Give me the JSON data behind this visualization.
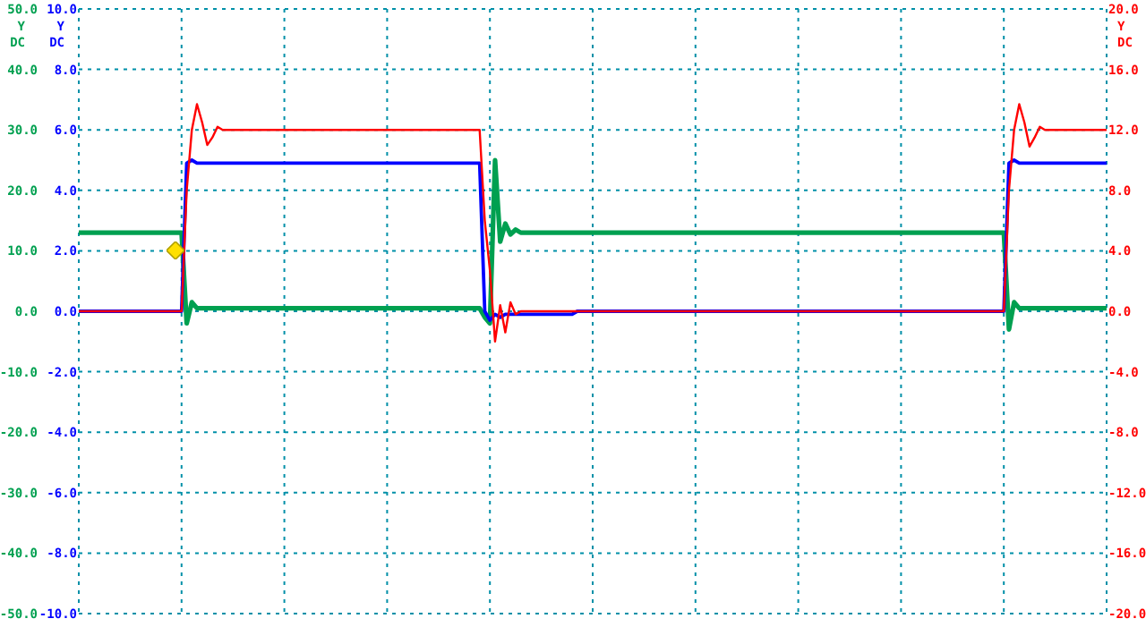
{
  "chart_data": {
    "type": "line",
    "ylabel": "Y\nDC",
    "y2label": "Y\nDC",
    "y3label": "Y\nDC",
    "grid": true,
    "marker": "none",
    "line_style": "solid",
    "tick_labels": "y",
    "categories": [
      null,
      null,
      null,
      null,
      null,
      null,
      null,
      null,
      null,
      null,
      null,
      null,
      null,
      null,
      null,
      null,
      null,
      null,
      null,
      null,
      null,
      null,
      null,
      null,
      null,
      null,
      null,
      null,
      null,
      null,
      null,
      null,
      null,
      null,
      null,
      null,
      null,
      null,
      null,
      null,
      null,
      null,
      null,
      null,
      null,
      null,
      null,
      null,
      null,
      null,
      null,
      null,
      null,
      null,
      null,
      null,
      null,
      null,
      null,
      null,
      null,
      null,
      null,
      null,
      null,
      null,
      null,
      null,
      null,
      null,
      null,
      null,
      null,
      null,
      null,
      null,
      null,
      null,
      null,
      null,
      null,
      null,
      null,
      null,
      null,
      null,
      null,
      null,
      null,
      null,
      null,
      null,
      null,
      null,
      null,
      null,
      null,
      null,
      null,
      null,
      null,
      null,
      null,
      null,
      null,
      null,
      null,
      null,
      null,
      null,
      null,
      null,
      null,
      null,
      null,
      null,
      null,
      null,
      null,
      null,
      null,
      null,
      null,
      null,
      null,
      null,
      null,
      null,
      null,
      null,
      null,
      null,
      null,
      null,
      null,
      null,
      null,
      null,
      null,
      null,
      null,
      null,
      null,
      null,
      null,
      null,
      null,
      null,
      null,
      null,
      null,
      null,
      null,
      null,
      null,
      null,
      null,
      null,
      null,
      null,
      null,
      null,
      null,
      null,
      null,
      null,
      null,
      null,
      null,
      null,
      null,
      null,
      null,
      null,
      null,
      null,
      null,
      null,
      null,
      null,
      null,
      null,
      null,
      null,
      null,
      null,
      null,
      null,
      null,
      null,
      null,
      null,
      null,
      null,
      null,
      null,
      null,
      null,
      null,
      null,
      null
    ],
    "ylim": [
      -10,
      10
    ],
    "yticks": [
      {
        "value": -10,
        "label": "-10.0"
      },
      {
        "value": -8,
        "label": "-8.0"
      },
      {
        "value": -6,
        "label": "-6.0"
      },
      {
        "value": -4,
        "label": "-4.0"
      },
      {
        "value": -2,
        "label": "-2.0"
      },
      {
        "value": 0,
        "label": "0.0"
      },
      {
        "value": 2,
        "label": "2.0"
      },
      {
        "value": 4,
        "label": "4.0"
      },
      {
        "value": 6,
        "label": "6.0"
      },
      {
        "value": 8,
        "label": "8.0"
      },
      {
        "value": 10,
        "label": "10.0"
      }
    ],
    "y2lim": [
      -50,
      50
    ],
    "y2ticks": [
      {
        "value": -50,
        "label": "-50.0"
      },
      {
        "value": -40,
        "label": "-40.0"
      },
      {
        "value": -30,
        "label": "-30.0"
      },
      {
        "value": -20,
        "label": "-20.0"
      },
      {
        "value": -10,
        "label": "-10.0"
      },
      {
        "value": 0,
        "label": "0.0"
      },
      {
        "value": 10,
        "label": "10.0"
      },
      {
        "value": 20,
        "label": "20.0"
      },
      {
        "value": 30,
        "label": "30.0"
      },
      {
        "value": 40,
        "label": "40.0"
      },
      {
        "value": 50,
        "label": "50.0"
      }
    ],
    "y3lim": [
      -20,
      20
    ],
    "y3ticks": [
      {
        "value": -20,
        "label": "-20.0"
      },
      {
        "value": -16,
        "label": "-16.0"
      },
      {
        "value": -12,
        "label": "-12.0"
      },
      {
        "value": -8,
        "label": "-8.0"
      },
      {
        "value": -4,
        "label": "-4.0"
      },
      {
        "value": 0,
        "label": "0.0"
      },
      {
        "value": 4,
        "label": "4.0"
      },
      {
        "value": 8,
        "label": "8.0"
      },
      {
        "value": 12,
        "label": "12.0"
      },
      {
        "value": 16,
        "label": "16.0"
      },
      {
        "value": 20,
        "label": "20.0"
      }
    ],
    "series": [
      {
        "color": "#00a050",
        "axis": "y2",
        "values": [
          13,
          13,
          13,
          13,
          13,
          13,
          13,
          13,
          13,
          13,
          13,
          13,
          13,
          13,
          13,
          13,
          13,
          13,
          13,
          13,
          13,
          -2,
          1.5,
          0.5,
          0.5,
          0.5,
          0.5,
          0.5,
          0.5,
          0.5,
          0.5,
          0.5,
          0.5,
          0.5,
          0.5,
          0.5,
          0.5,
          0.5,
          0.5,
          0.5,
          0.5,
          0.5,
          0.5,
          0.5,
          0.5,
          0.5,
          0.5,
          0.5,
          0.5,
          0.5,
          0.5,
          0.5,
          0.5,
          0.5,
          0.5,
          0.5,
          0.5,
          0.5,
          0.5,
          0.5,
          0.5,
          0.5,
          0.5,
          0.5,
          0.5,
          0.5,
          0.5,
          0.5,
          0.5,
          0.5,
          0.5,
          0.5,
          0.5,
          0.5,
          0.5,
          0.5,
          0.5,
          0.5,
          0.5,
          -1,
          -2,
          25,
          11.5,
          14.5,
          12.7,
          13.5,
          13,
          13,
          13,
          13,
          13,
          13,
          13,
          13,
          13,
          13,
          13,
          13,
          13,
          13,
          13,
          13,
          13,
          13,
          13,
          13,
          13,
          13,
          13,
          13,
          13,
          13,
          13,
          13,
          13,
          13,
          13,
          13,
          13,
          13,
          13,
          13,
          13,
          13,
          13,
          13,
          13,
          13,
          13,
          13,
          13,
          13,
          13,
          13,
          13,
          13,
          13,
          13,
          13,
          13,
          13,
          13,
          13,
          13,
          13,
          13,
          13,
          13,
          13,
          13,
          13,
          13,
          13,
          13,
          13,
          13,
          13,
          13,
          13,
          13,
          13,
          13,
          13,
          13,
          13,
          13,
          13,
          13,
          13,
          13,
          13,
          13,
          13,
          13,
          13,
          13,
          13,
          13,
          13,
          13,
          13,
          -3,
          1.5,
          0.5,
          0.5,
          0.5,
          0.5,
          0.5,
          0.5,
          0.5,
          0.5,
          0.5,
          0.5,
          0.5,
          0.5,
          0.5,
          0.5,
          0.5,
          0.5,
          0.5,
          0.5
        ]
      },
      {
        "color": "#0000ff",
        "axis": "y",
        "values": [
          0,
          0,
          0,
          0,
          0,
          0,
          0,
          0,
          0,
          0,
          0,
          0,
          0,
          0,
          0,
          0,
          0,
          0,
          0,
          0,
          0,
          4.9,
          5.0,
          4.9,
          4.9,
          4.9,
          4.9,
          4.9,
          4.9,
          4.9,
          4.9,
          4.9,
          4.9,
          4.9,
          4.9,
          4.9,
          4.9,
          4.9,
          4.9,
          4.9,
          4.9,
          4.9,
          4.9,
          4.9,
          4.9,
          4.9,
          4.9,
          4.9,
          4.9,
          4.9,
          4.9,
          4.9,
          4.9,
          4.9,
          4.9,
          4.9,
          4.9,
          4.9,
          4.9,
          4.9,
          4.9,
          4.9,
          4.9,
          4.9,
          4.9,
          4.9,
          4.9,
          4.9,
          4.9,
          4.9,
          4.9,
          4.9,
          4.9,
          4.9,
          4.9,
          4.9,
          4.9,
          4.9,
          4.9,
          0,
          -0.3,
          -0.1,
          -0.2,
          -0.1,
          -0.1,
          -0.1,
          -0.1,
          -0.1,
          -0.1,
          -0.1,
          -0.1,
          -0.1,
          -0.1,
          -0.1,
          -0.1,
          -0.1,
          -0.1,
          0,
          0,
          0,
          0,
          0,
          0,
          0,
          0,
          0,
          0,
          0,
          0,
          0,
          0,
          0,
          0,
          0,
          0,
          0,
          0,
          0,
          0,
          0,
          0,
          0,
          0,
          0,
          0,
          0,
          0,
          0,
          0,
          0,
          0,
          0,
          0,
          0,
          0,
          0,
          0,
          0,
          0,
          0,
          0,
          0,
          0,
          0,
          0,
          0,
          0,
          0,
          0,
          0,
          0,
          0,
          0,
          0,
          0,
          0,
          0,
          0,
          0,
          0,
          0,
          0,
          0,
          0,
          0,
          0,
          0,
          0,
          0,
          0,
          0,
          0,
          0,
          0,
          0,
          0,
          0,
          0,
          0,
          0,
          0,
          4.9,
          5.0,
          4.9,
          4.9,
          4.9,
          4.9,
          4.9,
          4.9,
          4.9,
          4.9,
          4.9,
          4.9,
          4.9,
          4.9,
          4.9,
          4.9,
          4.9,
          4.9,
          4.9,
          4.9
        ]
      },
      {
        "color": "#ff0000",
        "axis": "y3",
        "values": [
          0,
          0,
          0,
          0,
          0,
          0,
          0,
          0,
          0,
          0,
          0,
          0,
          0,
          0,
          0,
          0,
          0,
          0,
          0,
          0,
          0,
          8,
          12,
          13.7,
          12.5,
          11,
          11.5,
          12.2,
          12,
          12,
          12,
          12,
          12,
          12,
          12,
          12,
          12,
          12,
          12,
          12,
          12,
          12,
          12,
          12,
          12,
          12,
          12,
          12,
          12,
          12,
          12,
          12,
          12,
          12,
          12,
          12,
          12,
          12,
          12,
          12,
          12,
          12,
          12,
          12,
          12,
          12,
          12,
          12,
          12,
          12,
          12,
          12,
          12,
          12,
          12,
          12,
          12,
          12,
          12,
          6,
          2.7,
          -2,
          0.4,
          -1.4,
          0.6,
          -0.2,
          0,
          0,
          0,
          0,
          0,
          0,
          0,
          0,
          0,
          0,
          0,
          0,
          0,
          0,
          0,
          0,
          0,
          0,
          0,
          0,
          0,
          0,
          0,
          0,
          0,
          0,
          0,
          0,
          0,
          0,
          0,
          0,
          0,
          0,
          0,
          0,
          0,
          0,
          0,
          0,
          0,
          0,
          0,
          0,
          0,
          0,
          0,
          0,
          0,
          0,
          0,
          0,
          0,
          0,
          0,
          0,
          0,
          0,
          0,
          0,
          0,
          0,
          0,
          0,
          0,
          0,
          0,
          0,
          0,
          0,
          0,
          0,
          0,
          0,
          0,
          0,
          0,
          0,
          0,
          0,
          0,
          0,
          0,
          0,
          0,
          0,
          0,
          0,
          0,
          0,
          0,
          0,
          0,
          0,
          0,
          8,
          12,
          13.7,
          12.5,
          10.9,
          11.5,
          12.2,
          12,
          12,
          12,
          12,
          12,
          12,
          12,
          12,
          12,
          12,
          12,
          12,
          12
        ]
      }
    ]
  }
}
